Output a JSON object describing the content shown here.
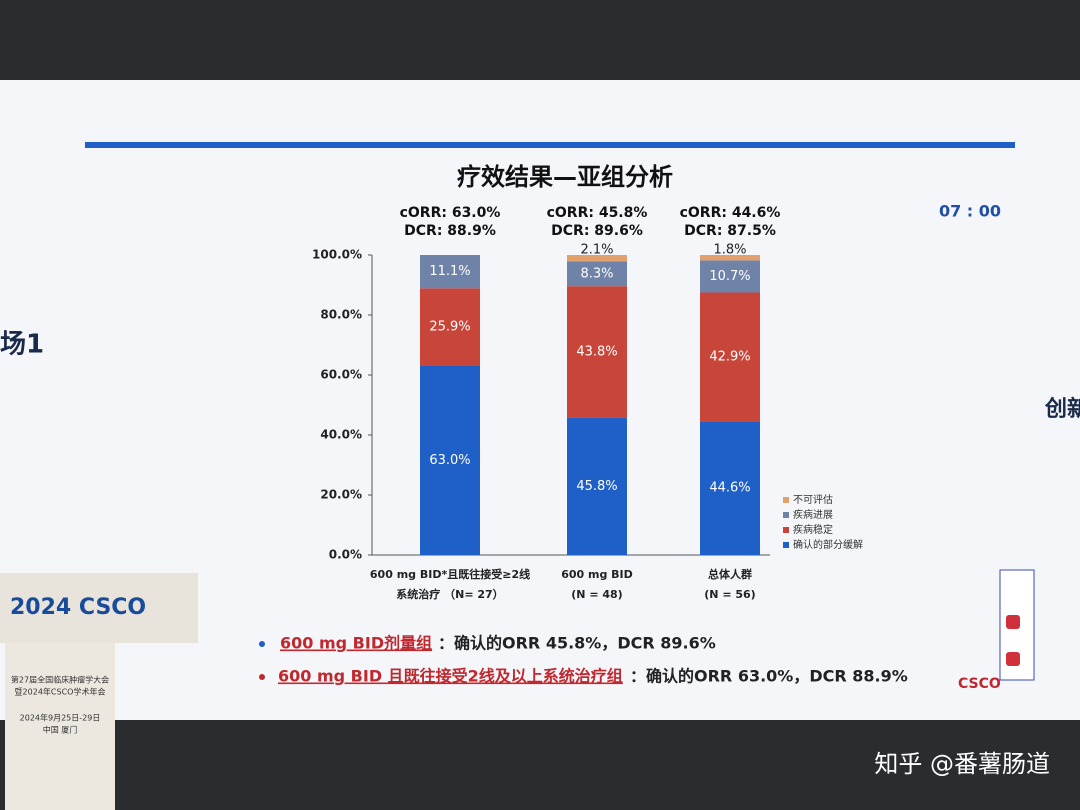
{
  "slide": {
    "title": "疗效结果—亚组分析",
    "timer": "07 : 00",
    "side_left": "场1",
    "side_right": "创新",
    "bullets": [
      {
        "highlight": "600 mg BID剂量组",
        "text": "：确认的ORR 45.8%，DCR 89.6%"
      },
      {
        "highlight": "600 mg BID 且既往接受2线及以上系统治疗组",
        "text": "：确认的ORR 63.0%，DCR 88.9%"
      }
    ],
    "logo": "CSCO"
  },
  "venue": {
    "podium_logo": "2024 CSCO",
    "podium_lines": [
      "第27届全国临床肿瘤学大会",
      "暨2024年CSCO学术年会",
      "2024年9月25日-29日",
      "中国 厦门"
    ],
    "watermark": "知乎 @番薯肠道"
  },
  "chart_data": {
    "type": "stacked-bar",
    "categories": [
      [
        "600 mg BID*且既往接受≥2线",
        "系统治疗 （N= 27）"
      ],
      [
        "600 mg BID",
        "(N = 48)"
      ],
      [
        "总体人群",
        "(N = 56)"
      ]
    ],
    "bar_annotations": [
      [
        "cORR: 63.0%",
        "DCR: 88.9%"
      ],
      [
        "cORR: 45.8%",
        "DCR: 89.6%"
      ],
      [
        "cORR: 44.6%",
        "DCR: 87.5%"
      ]
    ],
    "series": [
      {
        "name": "确认的部分缓解",
        "color": "#1f5fc8",
        "values": [
          63.0,
          45.8,
          44.6
        ],
        "value_labels": [
          "63.0%",
          "45.8%",
          "44.6%"
        ]
      },
      {
        "name": "疾病稳定",
        "color": "#c8453a",
        "values": [
          25.9,
          43.8,
          42.9
        ],
        "value_labels": [
          "25.9%",
          "43.8%",
          "42.9%"
        ]
      },
      {
        "name": "疾病进展",
        "color": "#6f82a8",
        "values": [
          11.1,
          8.3,
          10.7
        ],
        "value_labels": [
          "11.1%",
          "8.3%",
          "10.7%"
        ]
      },
      {
        "name": "不可评估",
        "color": "#e2a06c",
        "values": [
          null,
          2.1,
          1.8
        ],
        "value_labels": [
          null,
          "2.1%",
          "1.8%"
        ]
      }
    ],
    "ylim": [
      0,
      100
    ],
    "yticks": [
      {
        "value": 0,
        "label": "0.0%"
      },
      {
        "value": 20,
        "label": "20.0%"
      },
      {
        "value": 40,
        "label": "40.0%"
      },
      {
        "value": 60,
        "label": "60.0%"
      },
      {
        "value": 80,
        "label": "80.0%"
      },
      {
        "value": 100,
        "label": "100.0%"
      }
    ]
  }
}
